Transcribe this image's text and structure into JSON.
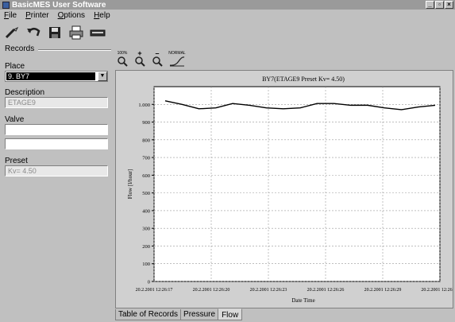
{
  "window": {
    "title": "BasicMES User Software"
  },
  "menu": [
    {
      "ul": "F",
      "rest": "ile"
    },
    {
      "ul": "P",
      "rest": "rinter"
    },
    {
      "ul": "O",
      "rest": "ptions"
    },
    {
      "ul": "H",
      "rest": "elp"
    }
  ],
  "toolbar_icons": [
    "wand-icon",
    "undo-icon",
    "save-icon",
    "print-icon",
    "keyboard-icon"
  ],
  "left_panel": {
    "group_title": "Records",
    "place_label": "Place",
    "place_value": "9. BY7",
    "description_label": "Description",
    "description_value": "ETAGE9",
    "valve_label": "Valve",
    "valve_value_1": "",
    "valve_value_2": "",
    "preset_label": "Preset",
    "preset_value": "Kv=  4.50"
  },
  "chart_toolbar": {
    "zoom100_label": "100%",
    "normal_label": "NORMAL"
  },
  "tabs": [
    "Table of Records",
    "Pressure",
    "Flow"
  ],
  "active_tab": "Flow",
  "chart_data": {
    "type": "line",
    "title": "BY7(ETAGE9   Preset Kv=  4.50)",
    "xlabel": "Date Time",
    "ylabel": "Flow [l/hour]",
    "ylim": [
      0,
      1100
    ],
    "yticks": [
      0,
      100,
      200,
      300,
      400,
      500,
      600,
      700,
      800,
      900,
      "1.000"
    ],
    "xticks": [
      "20.2.2001 12:26:17",
      "20.2.2001 12:26:20",
      "20.2.2001 12:26:23",
      "20.2.2001 12:26:26",
      "20.2.2001 12:26:29",
      "20.2.2001 12:26"
    ],
    "grid": true,
    "series": [
      {
        "values": [
          1020,
          1000,
          975,
          980,
          1005,
          995,
          980,
          975,
          980,
          1005,
          1005,
          995,
          995,
          980,
          970,
          985,
          995
        ]
      }
    ]
  }
}
